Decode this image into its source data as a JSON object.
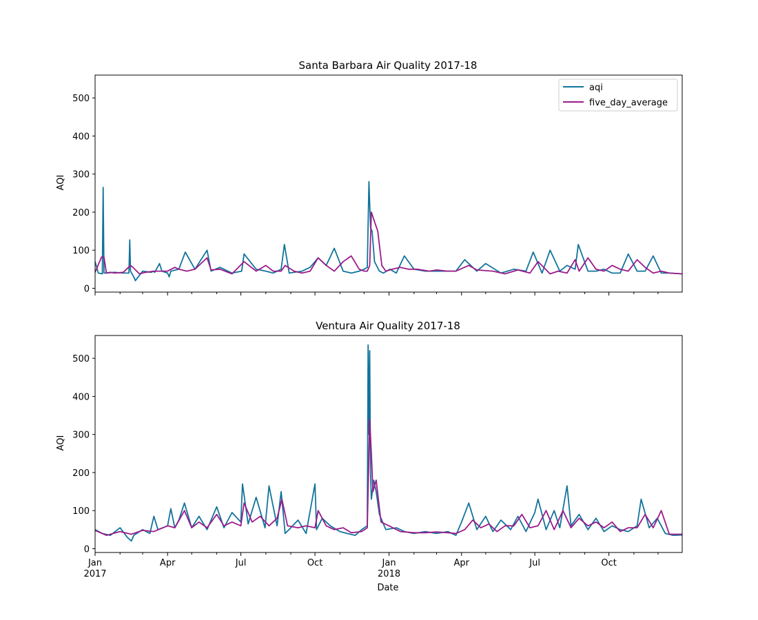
{
  "colors": {
    "aqi": "#11739b",
    "five_day_average": "#9b1a8a"
  },
  "chart_data": [
    {
      "type": "line",
      "title": "Santa Barbara Air Quality 2017-18",
      "xlabel": "",
      "ylabel": "AQI",
      "xlim": [
        "2017-01-01",
        "2018-12-31"
      ],
      "ylim": [
        -10,
        560
      ],
      "yticks": [
        0,
        100,
        200,
        300,
        400,
        500
      ],
      "legend": "top-right",
      "grid": false,
      "series": [
        {
          "name": "aqi",
          "x": [
            "2017-01-01",
            "2017-01-05",
            "2017-01-10",
            "2017-01-11",
            "2017-01-12",
            "2017-01-15",
            "2017-01-25",
            "2017-02-05",
            "2017-02-12",
            "2017-02-13",
            "2017-02-14",
            "2017-02-18",
            "2017-02-20",
            "2017-03-01",
            "2017-03-12",
            "2017-03-14",
            "2017-03-16",
            "2017-03-22",
            "2017-03-25",
            "2017-04-01",
            "2017-04-03",
            "2017-04-05",
            "2017-04-15",
            "2017-04-23",
            "2017-05-05",
            "2017-05-20",
            "2017-05-25",
            "2017-06-05",
            "2017-06-20",
            "2017-07-02",
            "2017-07-05",
            "2017-07-20",
            "2017-08-01",
            "2017-08-10",
            "2017-08-20",
            "2017-08-24",
            "2017-08-30",
            "2017-09-15",
            "2017-09-25",
            "2017-10-05",
            "2017-10-15",
            "2017-10-25",
            "2017-11-05",
            "2017-11-15",
            "2017-11-25",
            "2017-12-01",
            "2017-12-05",
            "2017-12-07",
            "2017-12-09",
            "2017-12-11",
            "2017-12-14",
            "2017-12-20",
            "2017-12-25",
            "2018-01-02",
            "2018-01-10",
            "2018-01-20",
            "2018-02-01",
            "2018-02-15",
            "2018-03-01",
            "2018-03-15",
            "2018-03-25",
            "2018-04-05",
            "2018-04-20",
            "2018-05-01",
            "2018-05-20",
            "2018-06-05",
            "2018-06-20",
            "2018-06-29",
            "2018-07-10",
            "2018-07-20",
            "2018-08-01",
            "2018-08-10",
            "2018-08-20",
            "2018-08-24",
            "2018-09-05",
            "2018-09-15",
            "2018-09-25",
            "2018-10-05",
            "2018-10-15",
            "2018-10-25",
            "2018-11-05",
            "2018-11-15",
            "2018-11-25",
            "2018-12-05",
            "2018-12-15",
            "2018-12-31"
          ],
          "y": [
            70,
            40,
            38,
            265,
            40,
            40,
            42,
            40,
            40,
            127,
            45,
            30,
            20,
            45,
            42,
            45,
            42,
            65,
            45,
            40,
            30,
            45,
            50,
            95,
            50,
            100,
            45,
            55,
            40,
            45,
            90,
            50,
            45,
            40,
            50,
            115,
            40,
            45,
            55,
            80,
            60,
            105,
            45,
            40,
            45,
            50,
            55,
            280,
            160,
            150,
            70,
            45,
            40,
            50,
            40,
            85,
            50,
            45,
            45,
            45,
            45,
            75,
            45,
            65,
            40,
            50,
            45,
            95,
            40,
            100,
            45,
            60,
            50,
            115,
            45,
            45,
            50,
            40,
            40,
            90,
            45,
            45,
            85,
            40,
            40,
            38
          ]
        },
        {
          "name": "five_day_average",
          "x": [
            "2017-01-01",
            "2017-01-09",
            "2017-01-12",
            "2017-01-15",
            "2017-01-20",
            "2017-01-25",
            "2017-02-05",
            "2017-02-14",
            "2017-02-17",
            "2017-02-25",
            "2017-03-05",
            "2017-03-15",
            "2017-03-22",
            "2017-04-01",
            "2017-04-10",
            "2017-04-15",
            "2017-04-25",
            "2017-05-05",
            "2017-05-20",
            "2017-05-25",
            "2017-06-05",
            "2017-06-20",
            "2017-07-05",
            "2017-07-20",
            "2017-08-01",
            "2017-08-10",
            "2017-08-20",
            "2017-08-25",
            "2017-09-05",
            "2017-09-15",
            "2017-09-25",
            "2017-10-05",
            "2017-10-15",
            "2017-10-25",
            "2017-11-05",
            "2017-11-15",
            "2017-11-25",
            "2017-12-01",
            "2017-12-05",
            "2017-12-08",
            "2017-12-10",
            "2017-12-14",
            "2017-12-18",
            "2017-12-23",
            "2017-12-28",
            "2018-01-05",
            "2018-01-15",
            "2018-01-25",
            "2018-02-05",
            "2018-02-20",
            "2018-03-01",
            "2018-03-15",
            "2018-03-25",
            "2018-04-10",
            "2018-04-20",
            "2018-05-10",
            "2018-05-25",
            "2018-06-10",
            "2018-06-25",
            "2018-07-05",
            "2018-07-20",
            "2018-07-30",
            "2018-08-10",
            "2018-08-20",
            "2018-08-25",
            "2018-09-05",
            "2018-09-15",
            "2018-09-25",
            "2018-10-05",
            "2018-10-15",
            "2018-10-25",
            "2018-11-05",
            "2018-11-15",
            "2018-11-25",
            "2018-12-05",
            "2018-12-15",
            "2018-12-31"
          ],
          "y": [
            42,
            82,
            82,
            40,
            42,
            40,
            42,
            60,
            55,
            38,
            42,
            45,
            45,
            45,
            55,
            50,
            45,
            50,
            80,
            48,
            50,
            38,
            70,
            45,
            60,
            45,
            45,
            60,
            45,
            40,
            45,
            80,
            60,
            45,
            70,
            85,
            50,
            45,
            45,
            60,
            200,
            175,
            150,
            60,
            45,
            50,
            55,
            50,
            50,
            45,
            48,
            45,
            45,
            60,
            48,
            45,
            38,
            48,
            40,
            70,
            38,
            45,
            40,
            75,
            45,
            80,
            50,
            45,
            60,
            50,
            45,
            75,
            55,
            40,
            45,
            40,
            38
          ]
        }
      ]
    },
    {
      "type": "line",
      "title": "Ventura Air Quality 2017-18",
      "xlabel": "Date",
      "ylabel": "AQI",
      "xlim": [
        "2017-01-01",
        "2018-12-31"
      ],
      "ylim": [
        -10,
        560
      ],
      "yticks": [
        0,
        100,
        200,
        300,
        400,
        500
      ],
      "xticks": [
        {
          "date": "2017-01-01",
          "label": "Jan",
          "sub": "2017"
        },
        {
          "date": "2017-04-01",
          "label": "Apr",
          "sub": ""
        },
        {
          "date": "2017-07-01",
          "label": "Jul",
          "sub": ""
        },
        {
          "date": "2017-10-01",
          "label": "Oct",
          "sub": ""
        },
        {
          "date": "2018-01-01",
          "label": "Jan",
          "sub": "2018"
        },
        {
          "date": "2018-04-01",
          "label": "Apr",
          "sub": ""
        },
        {
          "date": "2018-07-01",
          "label": "Jul",
          "sub": ""
        },
        {
          "date": "2018-10-01",
          "label": "Oct",
          "sub": ""
        }
      ],
      "grid": false,
      "series": [
        {
          "name": "aqi",
          "x": [
            "2017-01-01",
            "2017-01-10",
            "2017-01-20",
            "2017-02-01",
            "2017-02-10",
            "2017-02-15",
            "2017-02-18",
            "2017-03-01",
            "2017-03-10",
            "2017-03-15",
            "2017-03-20",
            "2017-04-01",
            "2017-04-05",
            "2017-04-10",
            "2017-04-15",
            "2017-04-22",
            "2017-05-01",
            "2017-05-10",
            "2017-05-20",
            "2017-06-01",
            "2017-06-10",
            "2017-06-20",
            "2017-07-01",
            "2017-07-03",
            "2017-07-10",
            "2017-07-20",
            "2017-07-31",
            "2017-08-05",
            "2017-08-15",
            "2017-08-20",
            "2017-08-25",
            "2017-09-01",
            "2017-09-10",
            "2017-09-20",
            "2017-10-01",
            "2017-10-03",
            "2017-10-10",
            "2017-10-20",
            "2017-11-01",
            "2017-11-10",
            "2017-11-20",
            "2017-11-28",
            "2017-12-05",
            "2017-12-06",
            "2017-12-07",
            "2017-12-08",
            "2017-12-09",
            "2017-12-10",
            "2017-12-13",
            "2017-12-16",
            "2017-12-20",
            "2017-12-28",
            "2018-01-10",
            "2018-01-20",
            "2018-02-01",
            "2018-02-15",
            "2018-03-01",
            "2018-03-15",
            "2018-03-25",
            "2018-04-01",
            "2018-04-10",
            "2018-04-20",
            "2018-05-01",
            "2018-05-10",
            "2018-05-20",
            "2018-06-01",
            "2018-06-10",
            "2018-06-20",
            "2018-07-01",
            "2018-07-05",
            "2018-07-15",
            "2018-07-25",
            "2018-08-01",
            "2018-08-10",
            "2018-08-15",
            "2018-08-25",
            "2018-09-05",
            "2018-09-15",
            "2018-09-25",
            "2018-10-05",
            "2018-10-15",
            "2018-10-25",
            "2018-11-05",
            "2018-11-10",
            "2018-11-20",
            "2018-11-30",
            "2018-12-10",
            "2018-12-20",
            "2018-12-31"
          ],
          "y": [
            50,
            40,
            35,
            55,
            30,
            20,
            35,
            50,
            40,
            85,
            50,
            60,
            105,
            55,
            75,
            120,
            55,
            85,
            50,
            110,
            55,
            95,
            70,
            170,
            65,
            135,
            55,
            165,
            60,
            150,
            40,
            55,
            75,
            40,
            170,
            50,
            80,
            60,
            45,
            40,
            35,
            50,
            60,
            535,
            300,
            520,
            200,
            130,
            180,
            150,
            90,
            50,
            55,
            45,
            40,
            45,
            40,
            45,
            35,
            70,
            120,
            50,
            85,
            45,
            75,
            50,
            85,
            45,
            95,
            130,
            50,
            100,
            55,
            165,
            60,
            90,
            50,
            80,
            45,
            60,
            50,
            45,
            60,
            130,
            55,
            80,
            40,
            35,
            36
          ]
        },
        {
          "name": "five_day_average",
          "x": [
            "2017-01-01",
            "2017-01-15",
            "2017-02-01",
            "2017-02-15",
            "2017-03-01",
            "2017-03-15",
            "2017-04-01",
            "2017-04-10",
            "2017-04-22",
            "2017-05-01",
            "2017-05-10",
            "2017-05-20",
            "2017-06-01",
            "2017-06-10",
            "2017-06-20",
            "2017-07-01",
            "2017-07-05",
            "2017-07-15",
            "2017-07-25",
            "2017-08-05",
            "2017-08-15",
            "2017-08-21",
            "2017-08-28",
            "2017-09-10",
            "2017-09-20",
            "2017-10-01",
            "2017-10-05",
            "2017-10-15",
            "2017-10-25",
            "2017-11-05",
            "2017-11-15",
            "2017-11-28",
            "2017-12-05",
            "2017-12-08",
            "2017-12-10",
            "2017-12-12",
            "2017-12-16",
            "2017-12-22",
            "2018-01-01",
            "2018-01-15",
            "2018-02-01",
            "2018-02-15",
            "2018-03-01",
            "2018-03-15",
            "2018-03-25",
            "2018-04-05",
            "2018-04-15",
            "2018-04-25",
            "2018-05-05",
            "2018-05-15",
            "2018-05-25",
            "2018-06-05",
            "2018-06-15",
            "2018-06-25",
            "2018-07-05",
            "2018-07-15",
            "2018-07-25",
            "2018-08-05",
            "2018-08-15",
            "2018-08-25",
            "2018-09-05",
            "2018-09-15",
            "2018-09-25",
            "2018-10-05",
            "2018-10-15",
            "2018-10-25",
            "2018-11-05",
            "2018-11-15",
            "2018-11-25",
            "2018-12-05",
            "2018-12-15",
            "2018-12-31"
          ],
          "y": [
            48,
            35,
            45,
            38,
            48,
            45,
            60,
            55,
            100,
            55,
            70,
            55,
            90,
            60,
            70,
            60,
            120,
            70,
            85,
            60,
            80,
            130,
            60,
            55,
            60,
            55,
            100,
            60,
            50,
            55,
            42,
            45,
            55,
            340,
            250,
            150,
            180,
            70,
            60,
            45,
            42,
            42,
            44,
            42,
            40,
            50,
            75,
            55,
            65,
            45,
            60,
            60,
            90,
            55,
            60,
            100,
            50,
            100,
            55,
            80,
            60,
            70,
            55,
            70,
            45,
            55,
            55,
            90,
            55,
            100,
            38,
            38
          ]
        }
      ]
    }
  ]
}
